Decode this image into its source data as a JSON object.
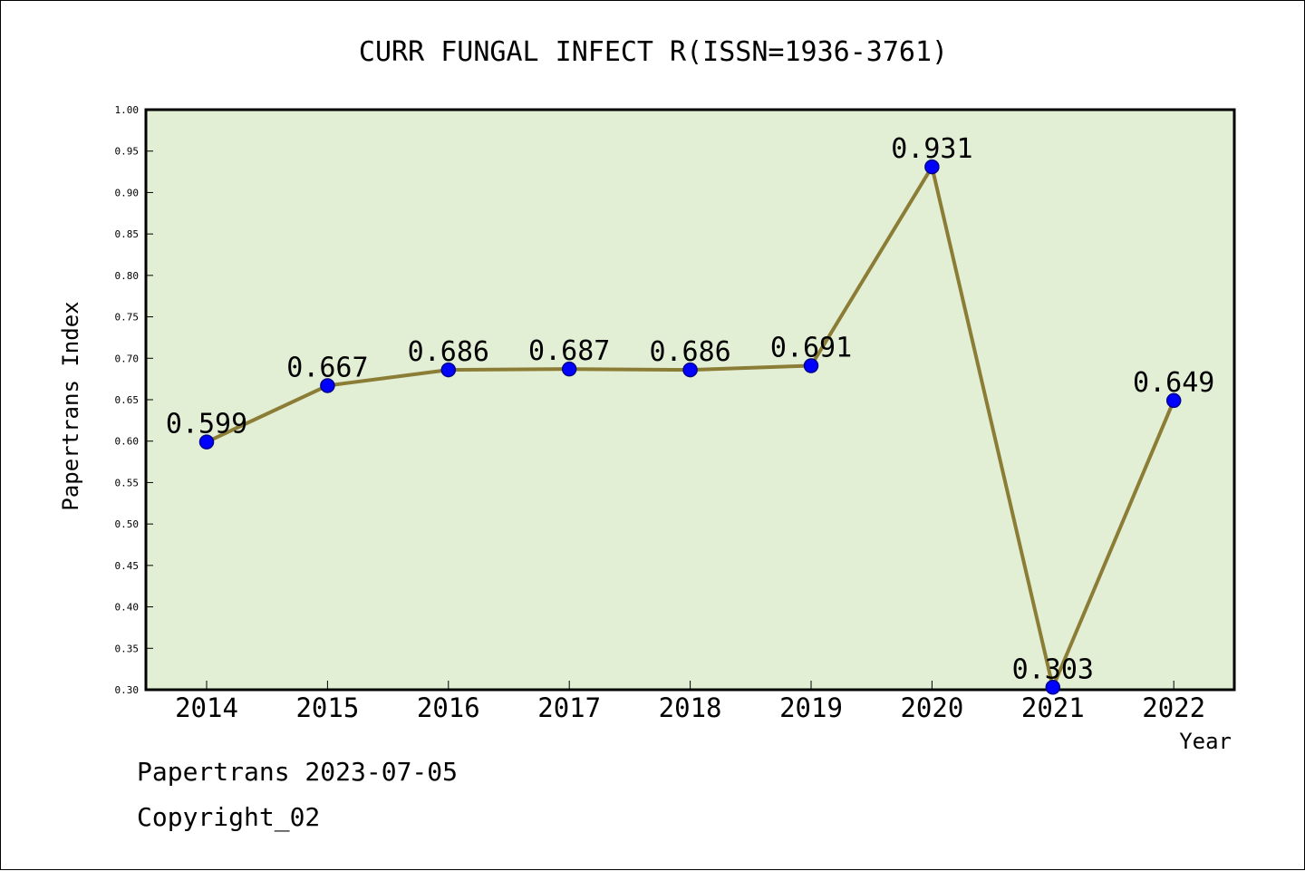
{
  "chart_data": {
    "type": "line",
    "title": "CURR FUNGAL INFECT R(ISSN=1936-3761)",
    "xlabel": "Year",
    "ylabel": "Papertrans Index",
    "categories": [
      "2014",
      "2015",
      "2016",
      "2017",
      "2018",
      "2019",
      "2020",
      "2021",
      "2022"
    ],
    "values": [
      0.599,
      0.667,
      0.686,
      0.687,
      0.686,
      0.691,
      0.931,
      0.303,
      0.649
    ],
    "data_labels": [
      "0.599",
      "0.667",
      "0.686",
      "0.687",
      "0.686",
      "0.691",
      "0.931",
      "0.303",
      "0.649"
    ],
    "yticks": [
      "0.30",
      "0.35",
      "0.40",
      "0.45",
      "0.50",
      "0.55",
      "0.60",
      "0.65",
      "0.70",
      "0.75",
      "0.80",
      "0.85",
      "0.90",
      "0.95",
      "1.00"
    ],
    "ylim": [
      0.3,
      1.0
    ],
    "grid": false,
    "legend": "none",
    "colors": {
      "plot_background": "#e2efd5",
      "line": "#8b7d35",
      "marker": "#0000ff",
      "marker_edge": "#00008b"
    }
  },
  "footer": {
    "line1": "Papertrans 2023-07-05",
    "line2": "Copyright_02"
  }
}
